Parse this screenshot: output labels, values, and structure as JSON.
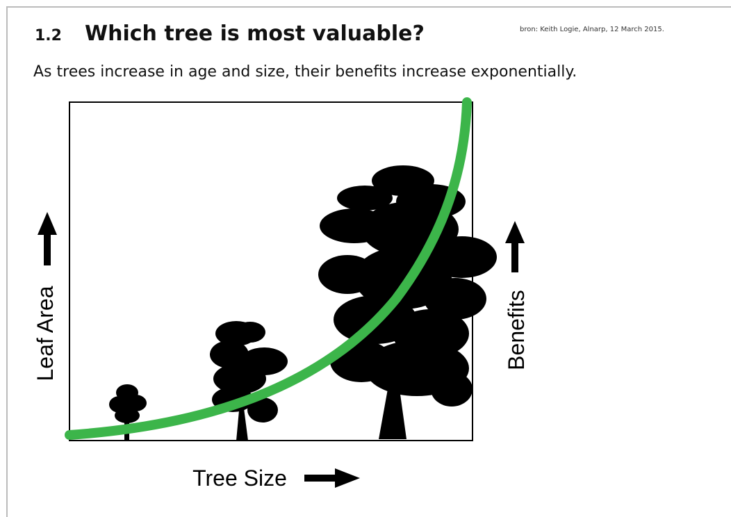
{
  "header": {
    "number": "1.2",
    "title": "Which tree is most valuable?",
    "source": "bron: Keith Logie, Alnarp, 12 March 2015.",
    "subtitle": "As trees increase in age and size, their benefits increase exponentially."
  },
  "diagram": {
    "y_label": "Leaf Area",
    "x_label": "Tree Size",
    "y2_label": "Benefits"
  }
}
